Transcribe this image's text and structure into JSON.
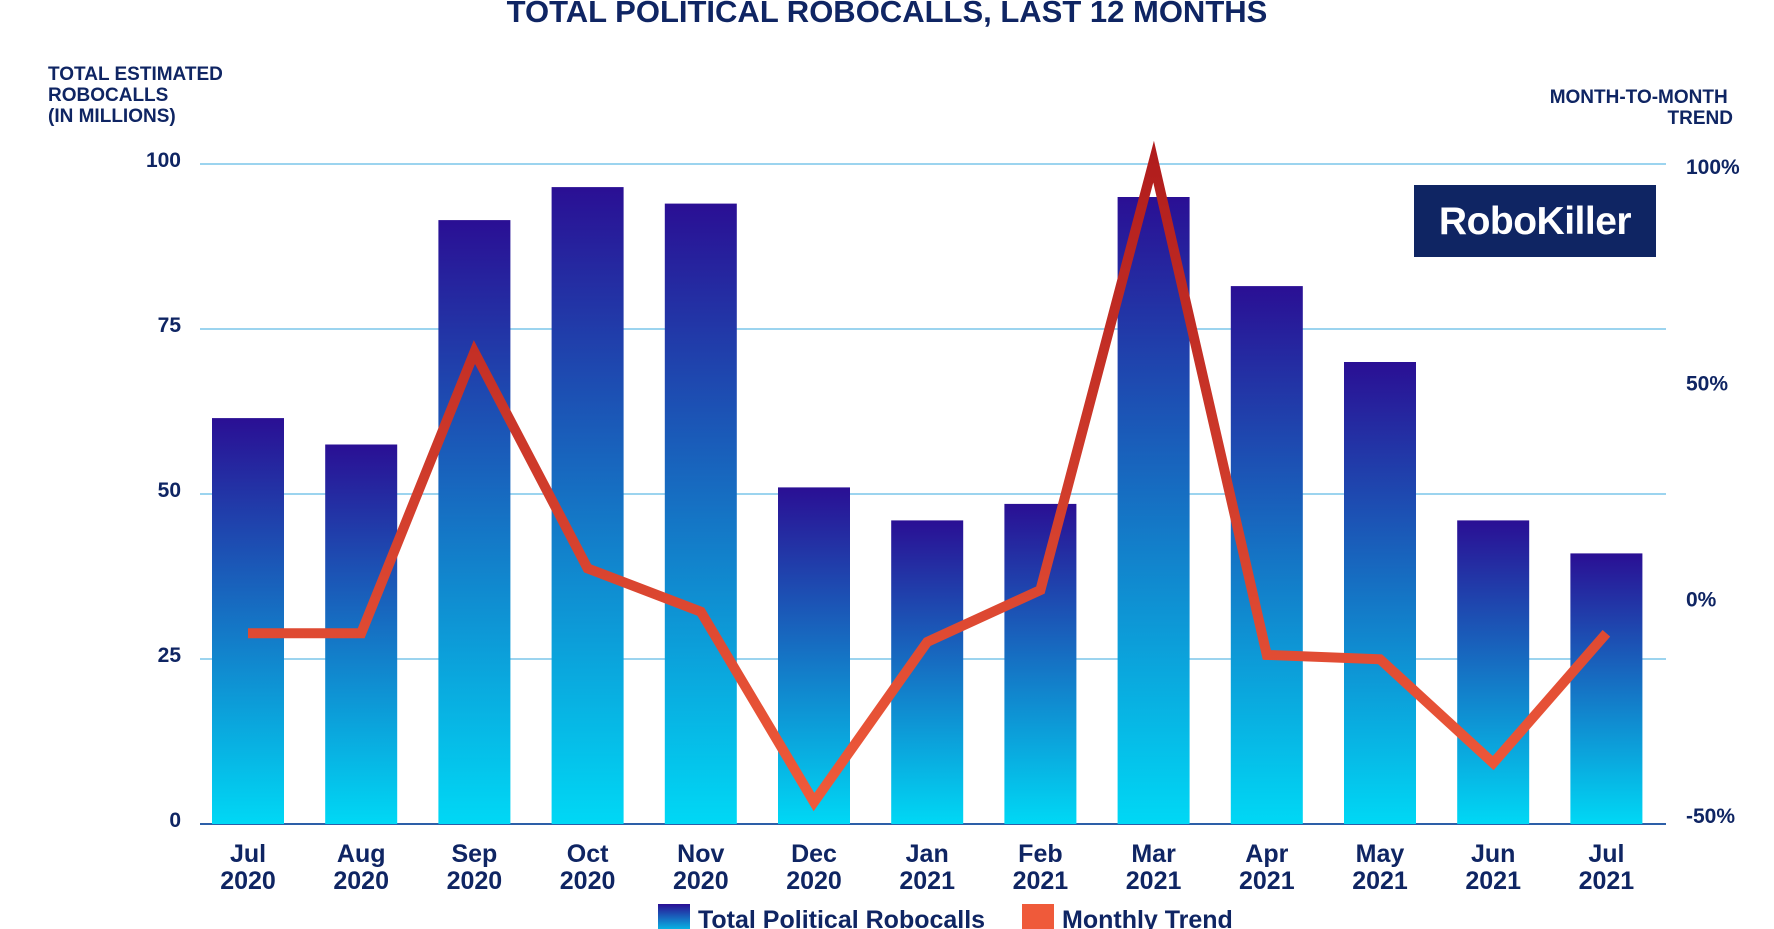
{
  "brand": {
    "name": "RoboKiller",
    "bg": "#0f2563"
  },
  "colors": {
    "text": "#0f2563",
    "bar_top": "#2a0f94",
    "bar_bottom": "#00d8f5",
    "trend_top": "#b01c1c",
    "trend_bottom": "#ef5a3a",
    "grid": "#7cc6ea"
  },
  "chart_data": {
    "type": "bar",
    "title": "TOTAL POLITICAL ROBOCALLS, LAST 12 MONTHS",
    "ylabel_lines": [
      "TOTAL ESTIMATED",
      "ROBOCALLS",
      "(IN MILLIONS)"
    ],
    "y2label_lines": [
      "MONTH-TO-MONTH",
      "TREND"
    ],
    "categories": [
      [
        "Jul",
        "2020"
      ],
      [
        "Aug",
        "2020"
      ],
      [
        "Sep",
        "2020"
      ],
      [
        "Oct",
        "2020"
      ],
      [
        "Nov",
        "2020"
      ],
      [
        "Dec",
        "2020"
      ],
      [
        "Jan",
        "2021"
      ],
      [
        "Feb",
        "2021"
      ],
      [
        "Mar",
        "2021"
      ],
      [
        "Apr",
        "2021"
      ],
      [
        "May",
        "2021"
      ],
      [
        "Jun",
        "2021"
      ],
      [
        "Jul",
        "2021"
      ]
    ],
    "ylim": [
      0,
      100
    ],
    "yticks": [
      0,
      25,
      50,
      75,
      100
    ],
    "y2lim": [
      -50,
      100
    ],
    "y2ticks": [
      {
        "value": -50,
        "label": "-50%"
      },
      {
        "value": 0,
        "label": "0%"
      },
      {
        "value": 50,
        "label": "50%"
      },
      {
        "value": 100,
        "label": "100%"
      }
    ],
    "series": [
      {
        "name": "Total Political Robocalls",
        "kind": "bar",
        "axis": "left",
        "values": [
          61.5,
          57.5,
          91.5,
          96.5,
          94,
          51,
          46,
          48.5,
          95,
          81.5,
          70,
          46,
          41
        ]
      },
      {
        "name": "Monthly Trend",
        "kind": "line",
        "axis": "right",
        "values": [
          -8,
          -8,
          57,
          7,
          -3,
          -47,
          -10,
          2,
          101,
          -13,
          -14,
          -38,
          -8
        ]
      }
    ],
    "legend": [
      "Total Political Robocalls",
      "Monthly Trend"
    ]
  }
}
